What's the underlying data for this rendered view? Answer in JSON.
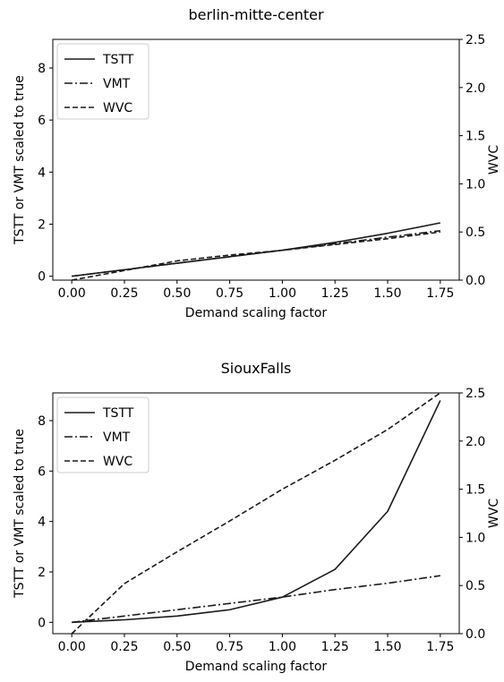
{
  "chart_data": [
    {
      "type": "line",
      "title": "berlin-mitte-center",
      "xlabel": "Demand scaling factor",
      "ylabel": "TSTT or VMT scaled to true",
      "ylabel_right": "WVC",
      "xlim": [
        -0.09,
        1.84
      ],
      "ylim": [
        -0.15,
        9.1
      ],
      "ylim_right": [
        0.0,
        2.5
      ],
      "xticks": [
        "0.00",
        "0.25",
        "0.50",
        "0.75",
        "1.00",
        "1.25",
        "1.50",
        "1.75"
      ],
      "yticks": [
        "0",
        "2",
        "4",
        "6",
        "8"
      ],
      "yticks_right": [
        "0.0",
        "0.5",
        "1.0",
        "1.5",
        "2.0",
        "2.5"
      ],
      "legend_position": "top-left",
      "grid": false,
      "x": [
        0.0,
        0.25,
        0.5,
        0.75,
        1.0,
        1.25,
        1.5,
        1.75
      ],
      "series": [
        {
          "name": "TSTT",
          "axis": "left",
          "dash": "solid",
          "values": [
            0.0,
            0.25,
            0.5,
            0.75,
            1.0,
            1.3,
            1.65,
            2.05
          ]
        },
        {
          "name": "VMT",
          "axis": "left",
          "dash": "dashdot",
          "values": [
            0.0,
            0.25,
            0.5,
            0.75,
            1.0,
            1.25,
            1.5,
            1.75
          ]
        },
        {
          "name": "WVC",
          "axis": "right",
          "dash": "dashed",
          "values": [
            0.0,
            0.1,
            0.2,
            0.26,
            0.31,
            0.37,
            0.43,
            0.5
          ]
        }
      ]
    },
    {
      "type": "line",
      "title": "SiouxFalls",
      "xlabel": "Demand scaling factor",
      "ylabel": "TSTT or VMT scaled to true",
      "ylabel_right": "WVC",
      "xlim": [
        -0.09,
        1.84
      ],
      "ylim": [
        -0.45,
        9.1
      ],
      "ylim_right": [
        0.0,
        2.5
      ],
      "xticks": [
        "0.00",
        "0.25",
        "0.50",
        "0.75",
        "1.00",
        "1.25",
        "1.50",
        "1.75"
      ],
      "yticks": [
        "0",
        "2",
        "4",
        "6",
        "8"
      ],
      "yticks_right": [
        "0.0",
        "0.5",
        "1.0",
        "1.5",
        "2.0",
        "2.5"
      ],
      "legend_position": "top-left",
      "grid": false,
      "x": [
        0.0,
        0.25,
        0.5,
        0.75,
        1.0,
        1.25,
        1.5,
        1.75
      ],
      "series": [
        {
          "name": "TSTT",
          "axis": "left",
          "dash": "solid",
          "values": [
            0.0,
            0.1,
            0.25,
            0.5,
            1.0,
            2.1,
            4.4,
            8.8
          ]
        },
        {
          "name": "VMT",
          "axis": "left",
          "dash": "dashdot",
          "values": [
            0.0,
            0.25,
            0.5,
            0.75,
            1.0,
            1.3,
            1.55,
            1.85
          ]
        },
        {
          "name": "WVC",
          "axis": "right",
          "dash": "dashed",
          "values": [
            0.0,
            0.52,
            0.85,
            1.17,
            1.5,
            1.8,
            2.12,
            2.5
          ]
        }
      ]
    }
  ]
}
